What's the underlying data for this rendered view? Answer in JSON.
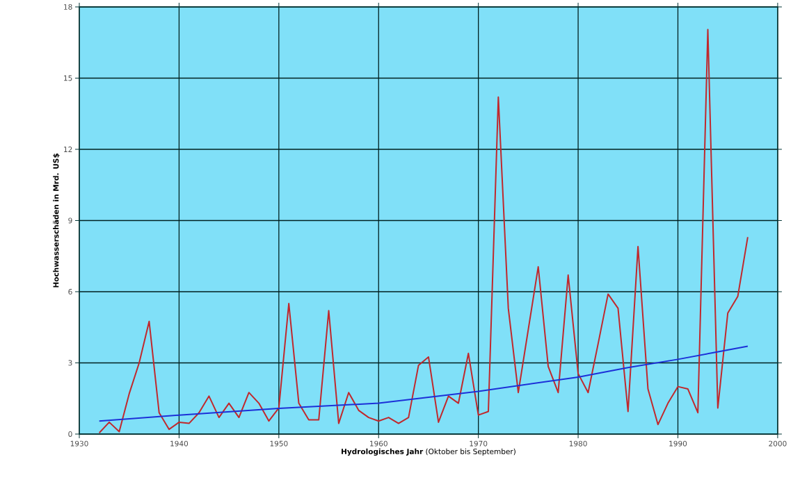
{
  "chart_data": {
    "type": "line",
    "xlabel": "**Hydrologisches Jahr** (Oktober bis September)",
    "ylabel": "Hochwasserschäden in Mrd. US$",
    "x": [
      1932,
      1933,
      1934,
      1935,
      1936,
      1937,
      1938,
      1939,
      1940,
      1941,
      1942,
      1943,
      1944,
      1945,
      1946,
      1947,
      1948,
      1949,
      1950,
      1951,
      1952,
      1953,
      1954,
      1955,
      1956,
      1957,
      1958,
      1959,
      1960,
      1961,
      1962,
      1963,
      1964,
      1965,
      1966,
      1967,
      1968,
      1969,
      1970,
      1971,
      1972,
      1973,
      1974,
      1975,
      1976,
      1977,
      1978,
      1979,
      1980,
      1981,
      1982,
      1983,
      1984,
      1985,
      1986,
      1987,
      1988,
      1989,
      1990,
      1991,
      1992,
      1993,
      1994,
      1995,
      1996,
      1997
    ],
    "series": [
      {
        "color": "#c0282c",
        "values": [
          0.05,
          0.5,
          0.1,
          1.7,
          3.0,
          4.75,
          0.9,
          0.2,
          0.5,
          0.45,
          0.9,
          1.6,
          0.7,
          1.3,
          0.7,
          1.75,
          1.3,
          0.55,
          1.1,
          5.5,
          1.3,
          0.6,
          0.6,
          5.2,
          0.45,
          1.75,
          1.0,
          0.7,
          0.55,
          0.7,
          0.45,
          0.7,
          2.9,
          3.25,
          0.5,
          1.6,
          1.3,
          3.4,
          0.8,
          0.95,
          14.2,
          5.3,
          1.75,
          4.4,
          7.05,
          2.85,
          1.75,
          6.7,
          2.55,
          1.75,
          3.8,
          5.9,
          5.3,
          0.95,
          7.9,
          1.9,
          0.4,
          1.3,
          2.0,
          1.9,
          0.9,
          17.05,
          1.1,
          5.1,
          5.8,
          8.3
        ]
      },
      {
        "type": "line",
        "color": "#1c30d8",
        "x": [
          1932,
          1940,
          1950,
          1960,
          1970,
          1975,
          1980,
          1985,
          1990,
          1997
        ],
        "values": [
          0.55,
          0.8,
          1.08,
          1.3,
          1.8,
          2.1,
          2.4,
          2.8,
          3.15,
          3.7
        ]
      }
    ],
    "xlim": [
      1930,
      2000
    ],
    "xticks": [
      1930,
      1940,
      1950,
      1960,
      1970,
      1980,
      1990,
      2000
    ],
    "ylim": [
      0,
      18
    ],
    "yticks": [
      0,
      3,
      6,
      9,
      12,
      15,
      18
    ],
    "grid": true,
    "marker": "none",
    "line_style": "solid"
  }
}
